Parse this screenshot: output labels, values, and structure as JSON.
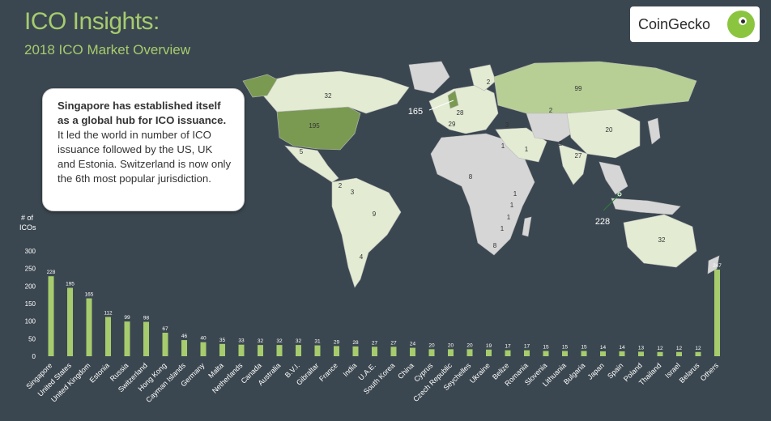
{
  "header": {
    "title": "ICO Insights:",
    "subtitle": "2018 ICO Market Overview"
  },
  "brand": {
    "name": "CoinGecko",
    "icon": "gecko-icon"
  },
  "callout": {
    "bold_text": "Singapore has established itself as a global hub for ICO issuance.",
    "text": " It led the world in number of ICO issuance followed by the US, UK and Estonia. Switzerland is now only the 6th most popular jurisdiction."
  },
  "colors": {
    "background": "#3b4750",
    "accent": "#a6cc6e",
    "bar": "#a6cc6e",
    "land": "#d6d6d6",
    "map_light": "#e3ebd3",
    "map_mid": "#b7cf94",
    "map_dark": "#7a9a52"
  },
  "map": {
    "pointer_labels": [
      "165",
      "228"
    ],
    "region_labels": [
      "32",
      "195",
      "5",
      "2",
      "3",
      "9",
      "4",
      "2",
      "28",
      "29",
      "3",
      "99",
      "2",
      "20",
      "2",
      "1",
      "1",
      "27",
      "1",
      "8",
      "1",
      "1",
      "1",
      "8",
      "32"
    ]
  },
  "chart_data": {
    "type": "bar",
    "ylabel": "# of ICOs",
    "ylim": [
      0,
      300
    ],
    "yticks": [
      0,
      50,
      100,
      150,
      200,
      250,
      300
    ],
    "grid": false,
    "categories": [
      "Singapore",
      "United States",
      "United Kingdom",
      "Estonia",
      "Russia",
      "Switzerland",
      "Hong Kong",
      "Cayman Islands",
      "Germany",
      "Malta",
      "Netherlands",
      "Canada",
      "Australia",
      "B.V.I.",
      "Gibraltar",
      "France",
      "India",
      "U.A.E.",
      "South Korea",
      "China",
      "Cyprus",
      "Czech Republic",
      "Seychelles",
      "Ukraine",
      "Belize",
      "Romania",
      "Slovenia",
      "Lithuania",
      "Bulgaria",
      "Japan",
      "Spain",
      "Poland",
      "Thailand",
      "Israel",
      "Belarus",
      "Others"
    ],
    "values": [
      228,
      195,
      165,
      112,
      99,
      98,
      67,
      46,
      40,
      35,
      33,
      32,
      32,
      32,
      31,
      29,
      28,
      27,
      27,
      24,
      20,
      20,
      20,
      19,
      17,
      17,
      15,
      15,
      15,
      14,
      14,
      13,
      12,
      12,
      12,
      247
    ]
  }
}
